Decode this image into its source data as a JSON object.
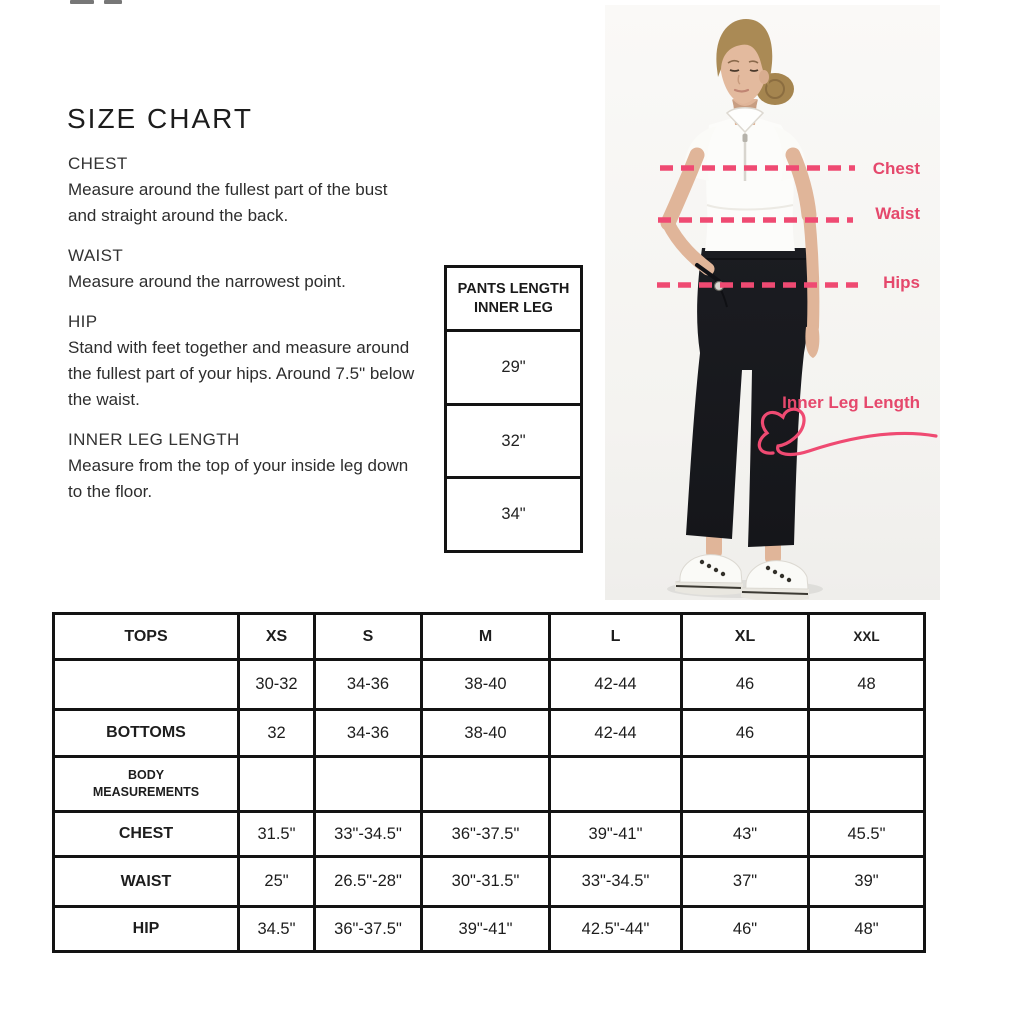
{
  "title": "SIZE CHART",
  "instructions": [
    {
      "heading": "CHEST",
      "body": "Measure around the fullest part of the bust and straight around the back."
    },
    {
      "heading": "WAIST",
      "body": "Measure around the narrowest point."
    },
    {
      "heading": "HIP",
      "body": "Stand with feet together and measure around the fullest part of your hips. Around 7.5\" below the waist."
    },
    {
      "heading": "INNER LEG LENGTH",
      "body": "Measure from the top of your inside leg down to the floor."
    }
  ],
  "pants_table": {
    "header_line1": "PANTS LENGTH",
    "header_line2": "INNER LEG",
    "rows": [
      "29\"",
      "32\"",
      "34\""
    ]
  },
  "figure": {
    "labels": {
      "chest": "Chest",
      "waist": "Waist",
      "hips": "Hips",
      "inner_leg": "Inner Leg Length"
    }
  },
  "size_table": {
    "columns": [
      "TOPS",
      "XS",
      "S",
      "M",
      "L",
      "XL",
      "XXL"
    ],
    "rows": [
      [
        "",
        "30-32",
        "34-36",
        "38-40",
        "42-44",
        "46",
        "48"
      ],
      [
        "BOTTOMS",
        "32",
        "34-36",
        "38-40",
        "42-44",
        "46",
        ""
      ],
      [
        "BODY MEASUREMENTS",
        "",
        "",
        "",
        "",
        "",
        ""
      ],
      [
        "CHEST",
        "31.5\"",
        "33\"-34.5\"",
        "36\"-37.5\"",
        "39\"-41\"",
        "43\"",
        "45.5\""
      ],
      [
        "WAIST",
        "25\"",
        "26.5\"-28\"",
        "30\"-31.5\"",
        "33\"-34.5\"",
        "37\"",
        "39\""
      ],
      [
        "HIP",
        "34.5\"",
        "36\"-37.5\"",
        "39\"-41\"",
        "42.5\"-44\"",
        "46\"",
        "48\""
      ]
    ]
  },
  "colors": {
    "accent_pink": "#e5486c",
    "dash_pink": "#ef4a72",
    "table_border": "#131313",
    "photo_bg": "#f6f5f2"
  }
}
